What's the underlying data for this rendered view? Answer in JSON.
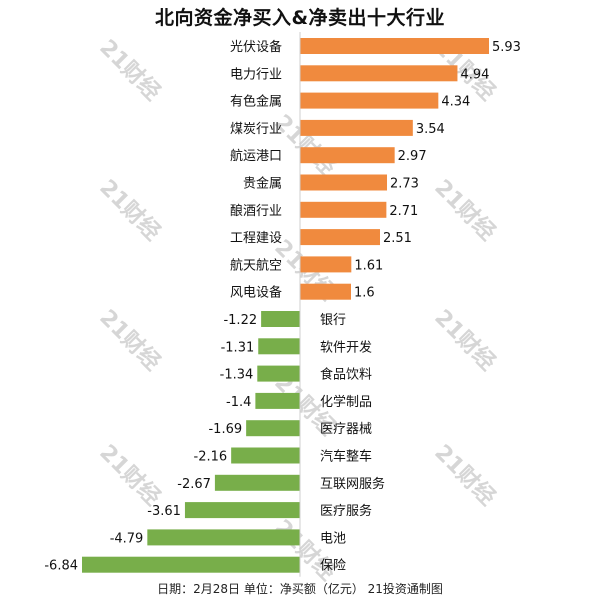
{
  "page": {
    "footer": "日期：2月28日 单位：净买额（亿元） 21投资通制图"
  },
  "watermark": {
    "text": "21财经"
  },
  "colors": {
    "positive": "#F08A3E",
    "negative": "#78AE4A",
    "axis": "#cfcfcf",
    "text": "#111111",
    "watermark": "#d6d6d6"
  },
  "chart_data": {
    "type": "bar",
    "orientation": "horizontal",
    "title": "北向资金净买入&净卖出十大行业",
    "xlabel": "",
    "ylabel": "",
    "grid": false,
    "legend": "none",
    "xlim": [
      -6.84,
      5.93
    ],
    "categories": [
      "光伏设备",
      "电力行业",
      "有色金属",
      "煤炭行业",
      "航运港口",
      "贵金属",
      "酿酒行业",
      "工程建设",
      "航天航空",
      "风电设备",
      "银行",
      "软件开发",
      "食品饮料",
      "化学制品",
      "医疗器械",
      "汽车整车",
      "互联网服务",
      "医疗服务",
      "电池",
      "保险"
    ],
    "values": [
      5.93,
      4.94,
      4.34,
      3.54,
      2.97,
      2.73,
      2.71,
      2.51,
      1.61,
      1.6,
      -1.22,
      -1.31,
      -1.34,
      -1.4,
      -1.69,
      -2.16,
      -2.67,
      -3.61,
      -4.79,
      -6.84
    ],
    "value_labels": [
      "5.93",
      "4.94",
      "4.34",
      "3.54",
      "2.97",
      "2.73",
      "2.71",
      "2.51",
      "1.61",
      "1.6",
      "-1.22",
      "-1.31",
      "-1.34",
      "-1.4",
      "-1.69",
      "-2.16",
      "-2.67",
      "-3.61",
      "-4.79",
      "-6.84"
    ]
  }
}
